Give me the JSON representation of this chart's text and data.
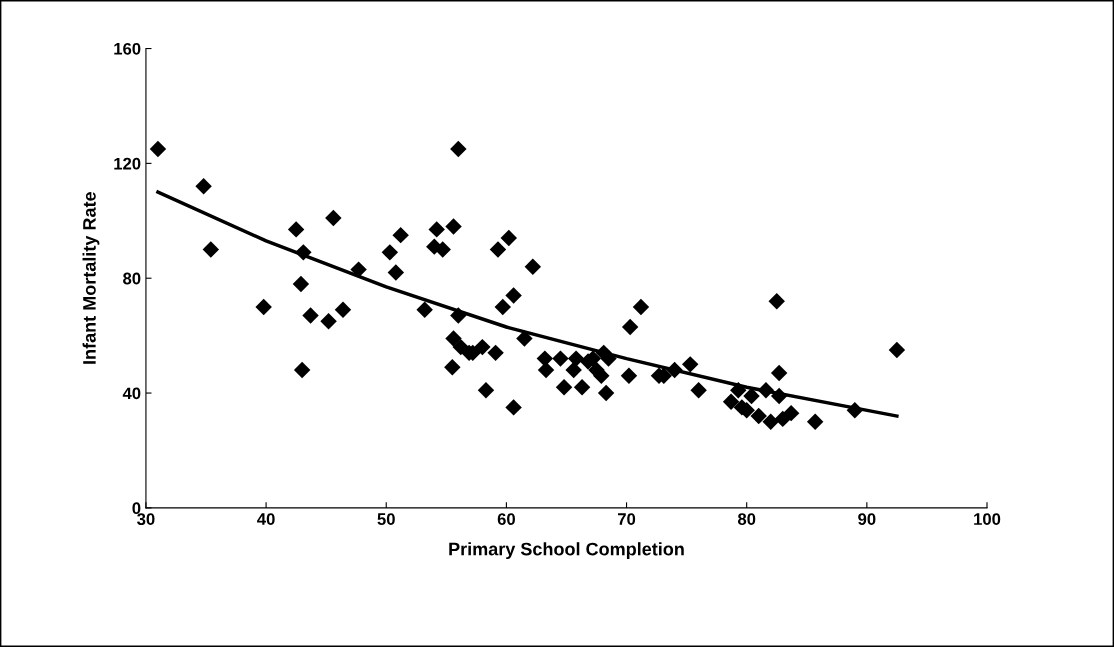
{
  "chart_data": {
    "type": "scatter",
    "xlabel": "Primary School Completion",
    "ylabel": "Infant Mortality Rate",
    "xlim": [
      30,
      100
    ],
    "xticks": [
      30,
      40,
      50,
      60,
      70,
      80,
      90,
      100
    ],
    "ylim": [
      0,
      160
    ],
    "yticks": [
      0,
      40,
      80,
      120,
      160
    ],
    "grid": false,
    "legend": false,
    "series": [
      {
        "marker": "diamond",
        "color": "#000000",
        "x": [
          31,
          34.8,
          35.4,
          39.8,
          42.5,
          42.9,
          43.1,
          43,
          43.7,
          45.2,
          45.6,
          46.4,
          47.7,
          50.3,
          50.8,
          51.2,
          53.2,
          54,
          54.2,
          54.7,
          55.6,
          55.6,
          55.5,
          56,
          56,
          56.2,
          56.9,
          57.2,
          58,
          58.3,
          59.1,
          59.3,
          59.7,
          60.2,
          60.6,
          60.6,
          61.5,
          62.2,
          63.2,
          63.3,
          64.5,
          64.8,
          65.6,
          65.8,
          66.3,
          66.8,
          67.2,
          67.5,
          67.9,
          68.1,
          68.3,
          68.5,
          70.2,
          70.3,
          71.2,
          72.7,
          73.1,
          74,
          75.3,
          76,
          78.7,
          79.3,
          79.6,
          80,
          80.4,
          81,
          81.6,
          82,
          82.5,
          82.7,
          82.7,
          83,
          83.7,
          85.7,
          89,
          92.5
        ],
        "values": [
          125,
          112,
          90,
          70,
          97,
          78,
          89,
          48,
          67,
          65,
          101,
          69,
          83,
          89,
          82,
          95,
          69,
          91,
          97,
          90,
          98,
          59,
          49,
          125,
          67,
          56,
          54,
          54,
          56,
          41,
          54,
          90,
          70,
          94,
          74,
          35,
          59,
          84,
          52,
          48,
          52,
          42,
          48,
          52,
          42,
          51,
          52,
          48,
          46,
          54,
          40,
          52,
          46,
          63,
          70,
          46,
          46,
          48,
          50,
          41,
          37,
          41,
          35,
          34,
          39,
          32,
          41,
          30,
          72,
          39,
          47,
          31,
          33,
          30,
          34,
          55
        ]
      },
      {
        "type": "line",
        "marker": "none",
        "color": "#000000",
        "x": [
          31,
          40,
          50,
          60,
          70,
          80,
          92.5
        ],
        "values": [
          110,
          93,
          77,
          63,
          52,
          42,
          32
        ]
      }
    ]
  }
}
